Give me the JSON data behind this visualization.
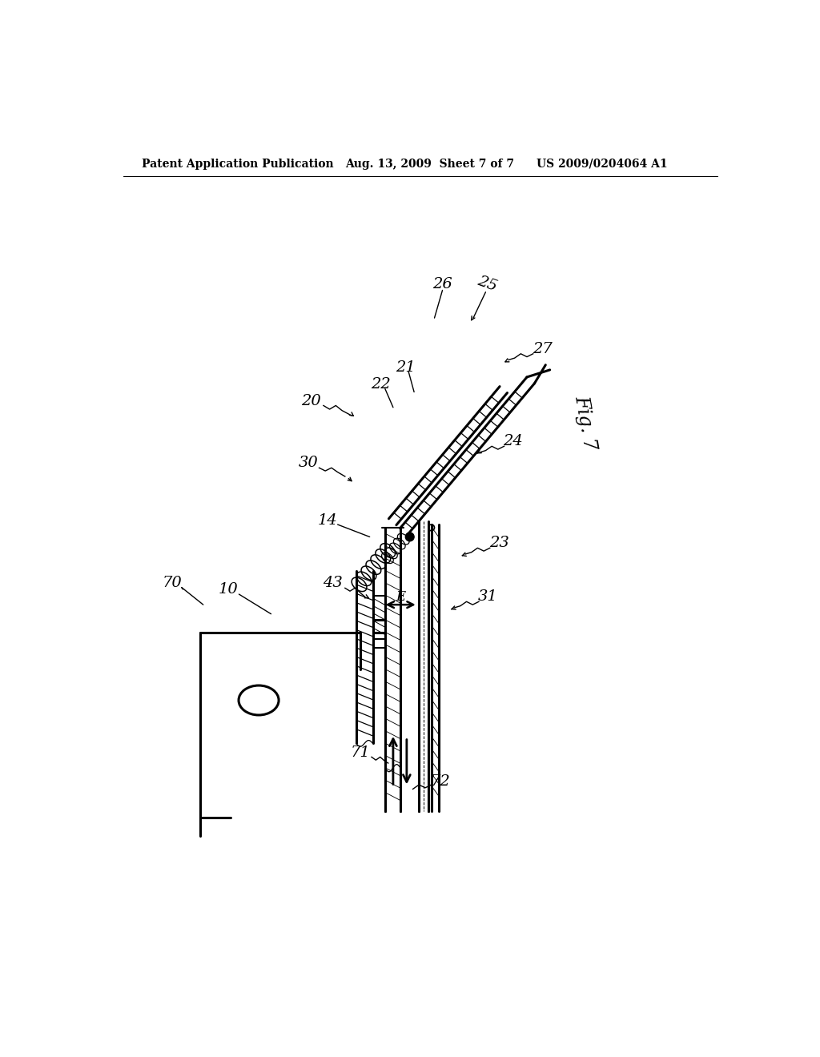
{
  "bg_color": "#ffffff",
  "title_left": "Patent Application Publication",
  "title_mid": "Aug. 13, 2009  Sheet 7 of 7",
  "title_right": "US 2009/0204064 A1",
  "fig_label": "Fig. 7"
}
